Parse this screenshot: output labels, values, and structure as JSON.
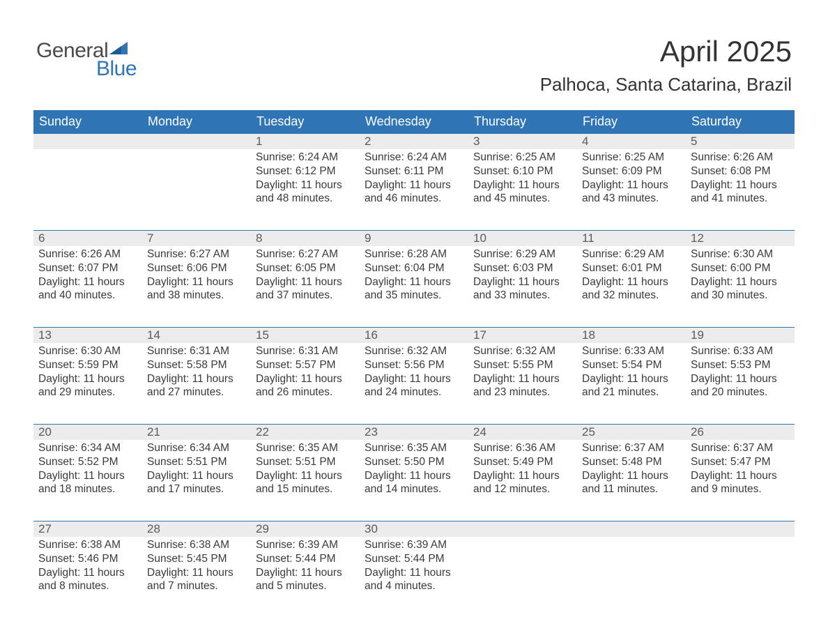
{
  "logo": {
    "word1": "General",
    "word2": "Blue",
    "flag_color": "#2f75b5",
    "word1_color": "#4a4a4a",
    "word2_color": "#2f75b5"
  },
  "title": "April 2025",
  "location": "Palhoca, Santa Catarina, Brazil",
  "colors": {
    "header_bg": "#2f75b5",
    "header_text": "#ffffff",
    "daynum_bg": "#ececec",
    "text": "#3a3a3a",
    "week_border": "#2f75b5",
    "background": "#ffffff"
  },
  "typography": {
    "title_fontsize": 42,
    "location_fontsize": 26,
    "header_fontsize": 18,
    "daynum_fontsize": 17,
    "body_fontsize": 15.5,
    "font_family": "Arial"
  },
  "layout": {
    "columns": 7,
    "rows": 5,
    "cell_min_height": 128
  },
  "daylabels": [
    "Sunday",
    "Monday",
    "Tuesday",
    "Wednesday",
    "Thursday",
    "Friday",
    "Saturday"
  ],
  "weeks": [
    [
      {
        "empty": true
      },
      {
        "empty": true
      },
      {
        "num": "1",
        "sunrise": "Sunrise: 6:24 AM",
        "sunset": "Sunset: 6:12 PM",
        "daylight1": "Daylight: 11 hours",
        "daylight2": "and 48 minutes."
      },
      {
        "num": "2",
        "sunrise": "Sunrise: 6:24 AM",
        "sunset": "Sunset: 6:11 PM",
        "daylight1": "Daylight: 11 hours",
        "daylight2": "and 46 minutes."
      },
      {
        "num": "3",
        "sunrise": "Sunrise: 6:25 AM",
        "sunset": "Sunset: 6:10 PM",
        "daylight1": "Daylight: 11 hours",
        "daylight2": "and 45 minutes."
      },
      {
        "num": "4",
        "sunrise": "Sunrise: 6:25 AM",
        "sunset": "Sunset: 6:09 PM",
        "daylight1": "Daylight: 11 hours",
        "daylight2": "and 43 minutes."
      },
      {
        "num": "5",
        "sunrise": "Sunrise: 6:26 AM",
        "sunset": "Sunset: 6:08 PM",
        "daylight1": "Daylight: 11 hours",
        "daylight2": "and 41 minutes."
      }
    ],
    [
      {
        "num": "6",
        "sunrise": "Sunrise: 6:26 AM",
        "sunset": "Sunset: 6:07 PM",
        "daylight1": "Daylight: 11 hours",
        "daylight2": "and 40 minutes."
      },
      {
        "num": "7",
        "sunrise": "Sunrise: 6:27 AM",
        "sunset": "Sunset: 6:06 PM",
        "daylight1": "Daylight: 11 hours",
        "daylight2": "and 38 minutes."
      },
      {
        "num": "8",
        "sunrise": "Sunrise: 6:27 AM",
        "sunset": "Sunset: 6:05 PM",
        "daylight1": "Daylight: 11 hours",
        "daylight2": "and 37 minutes."
      },
      {
        "num": "9",
        "sunrise": "Sunrise: 6:28 AM",
        "sunset": "Sunset: 6:04 PM",
        "daylight1": "Daylight: 11 hours",
        "daylight2": "and 35 minutes."
      },
      {
        "num": "10",
        "sunrise": "Sunrise: 6:29 AM",
        "sunset": "Sunset: 6:03 PM",
        "daylight1": "Daylight: 11 hours",
        "daylight2": "and 33 minutes."
      },
      {
        "num": "11",
        "sunrise": "Sunrise: 6:29 AM",
        "sunset": "Sunset: 6:01 PM",
        "daylight1": "Daylight: 11 hours",
        "daylight2": "and 32 minutes."
      },
      {
        "num": "12",
        "sunrise": "Sunrise: 6:30 AM",
        "sunset": "Sunset: 6:00 PM",
        "daylight1": "Daylight: 11 hours",
        "daylight2": "and 30 minutes."
      }
    ],
    [
      {
        "num": "13",
        "sunrise": "Sunrise: 6:30 AM",
        "sunset": "Sunset: 5:59 PM",
        "daylight1": "Daylight: 11 hours",
        "daylight2": "and 29 minutes."
      },
      {
        "num": "14",
        "sunrise": "Sunrise: 6:31 AM",
        "sunset": "Sunset: 5:58 PM",
        "daylight1": "Daylight: 11 hours",
        "daylight2": "and 27 minutes."
      },
      {
        "num": "15",
        "sunrise": "Sunrise: 6:31 AM",
        "sunset": "Sunset: 5:57 PM",
        "daylight1": "Daylight: 11 hours",
        "daylight2": "and 26 minutes."
      },
      {
        "num": "16",
        "sunrise": "Sunrise: 6:32 AM",
        "sunset": "Sunset: 5:56 PM",
        "daylight1": "Daylight: 11 hours",
        "daylight2": "and 24 minutes."
      },
      {
        "num": "17",
        "sunrise": "Sunrise: 6:32 AM",
        "sunset": "Sunset: 5:55 PM",
        "daylight1": "Daylight: 11 hours",
        "daylight2": "and 23 minutes."
      },
      {
        "num": "18",
        "sunrise": "Sunrise: 6:33 AM",
        "sunset": "Sunset: 5:54 PM",
        "daylight1": "Daylight: 11 hours",
        "daylight2": "and 21 minutes."
      },
      {
        "num": "19",
        "sunrise": "Sunrise: 6:33 AM",
        "sunset": "Sunset: 5:53 PM",
        "daylight1": "Daylight: 11 hours",
        "daylight2": "and 20 minutes."
      }
    ],
    [
      {
        "num": "20",
        "sunrise": "Sunrise: 6:34 AM",
        "sunset": "Sunset: 5:52 PM",
        "daylight1": "Daylight: 11 hours",
        "daylight2": "and 18 minutes."
      },
      {
        "num": "21",
        "sunrise": "Sunrise: 6:34 AM",
        "sunset": "Sunset: 5:51 PM",
        "daylight1": "Daylight: 11 hours",
        "daylight2": "and 17 minutes."
      },
      {
        "num": "22",
        "sunrise": "Sunrise: 6:35 AM",
        "sunset": "Sunset: 5:51 PM",
        "daylight1": "Daylight: 11 hours",
        "daylight2": "and 15 minutes."
      },
      {
        "num": "23",
        "sunrise": "Sunrise: 6:35 AM",
        "sunset": "Sunset: 5:50 PM",
        "daylight1": "Daylight: 11 hours",
        "daylight2": "and 14 minutes."
      },
      {
        "num": "24",
        "sunrise": "Sunrise: 6:36 AM",
        "sunset": "Sunset: 5:49 PM",
        "daylight1": "Daylight: 11 hours",
        "daylight2": "and 12 minutes."
      },
      {
        "num": "25",
        "sunrise": "Sunrise: 6:37 AM",
        "sunset": "Sunset: 5:48 PM",
        "daylight1": "Daylight: 11 hours",
        "daylight2": "and 11 minutes."
      },
      {
        "num": "26",
        "sunrise": "Sunrise: 6:37 AM",
        "sunset": "Sunset: 5:47 PM",
        "daylight1": "Daylight: 11 hours",
        "daylight2": "and 9 minutes."
      }
    ],
    [
      {
        "num": "27",
        "sunrise": "Sunrise: 6:38 AM",
        "sunset": "Sunset: 5:46 PM",
        "daylight1": "Daylight: 11 hours",
        "daylight2": "and 8 minutes."
      },
      {
        "num": "28",
        "sunrise": "Sunrise: 6:38 AM",
        "sunset": "Sunset: 5:45 PM",
        "daylight1": "Daylight: 11 hours",
        "daylight2": "and 7 minutes."
      },
      {
        "num": "29",
        "sunrise": "Sunrise: 6:39 AM",
        "sunset": "Sunset: 5:44 PM",
        "daylight1": "Daylight: 11 hours",
        "daylight2": "and 5 minutes."
      },
      {
        "num": "30",
        "sunrise": "Sunrise: 6:39 AM",
        "sunset": "Sunset: 5:44 PM",
        "daylight1": "Daylight: 11 hours",
        "daylight2": "and 4 minutes."
      },
      {
        "empty": true
      },
      {
        "empty": true
      },
      {
        "empty": true
      }
    ]
  ]
}
